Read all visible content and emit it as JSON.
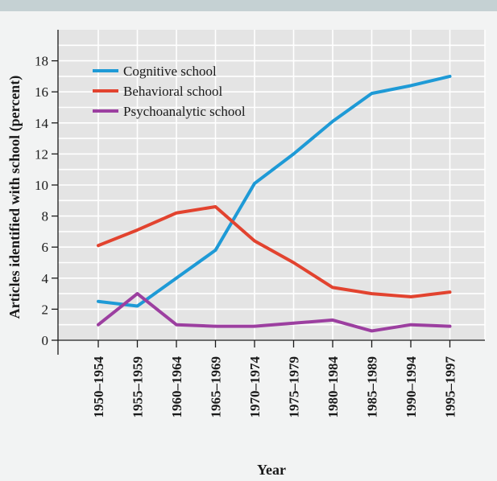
{
  "chart_data": {
    "type": "line",
    "title": "",
    "xlabel": "Year",
    "ylabel": "Articles identified with school (percent)",
    "categories": [
      "1950–1954",
      "1955–1959",
      "1960–1964",
      "1965–1969",
      "1970–1974",
      "1975–1979",
      "1980–1984",
      "1985–1989",
      "1990–1994",
      "1995–1997"
    ],
    "ylim": [
      0,
      18
    ],
    "yticks": [
      "0",
      "2",
      "4",
      "6",
      "8",
      "10",
      "12",
      "14",
      "16",
      "18"
    ],
    "grid": true,
    "legend_position": "top-left",
    "series": [
      {
        "name": "Cognitive school",
        "color": "#1e9ad6",
        "values": [
          2.5,
          2.2,
          4.0,
          5.8,
          10.1,
          12.0,
          14.1,
          15.9,
          16.4,
          17.0
        ]
      },
      {
        "name": "Behavioral school",
        "color": "#e2432f",
        "values": [
          6.1,
          7.1,
          8.2,
          8.6,
          6.4,
          5.0,
          3.4,
          3.0,
          2.8,
          3.1
        ]
      },
      {
        "name": "Psychoanalytic school",
        "color": "#9c3fa0",
        "values": [
          1.0,
          3.0,
          1.0,
          0.9,
          0.9,
          1.1,
          1.3,
          0.6,
          1.0,
          0.9
        ]
      }
    ]
  }
}
